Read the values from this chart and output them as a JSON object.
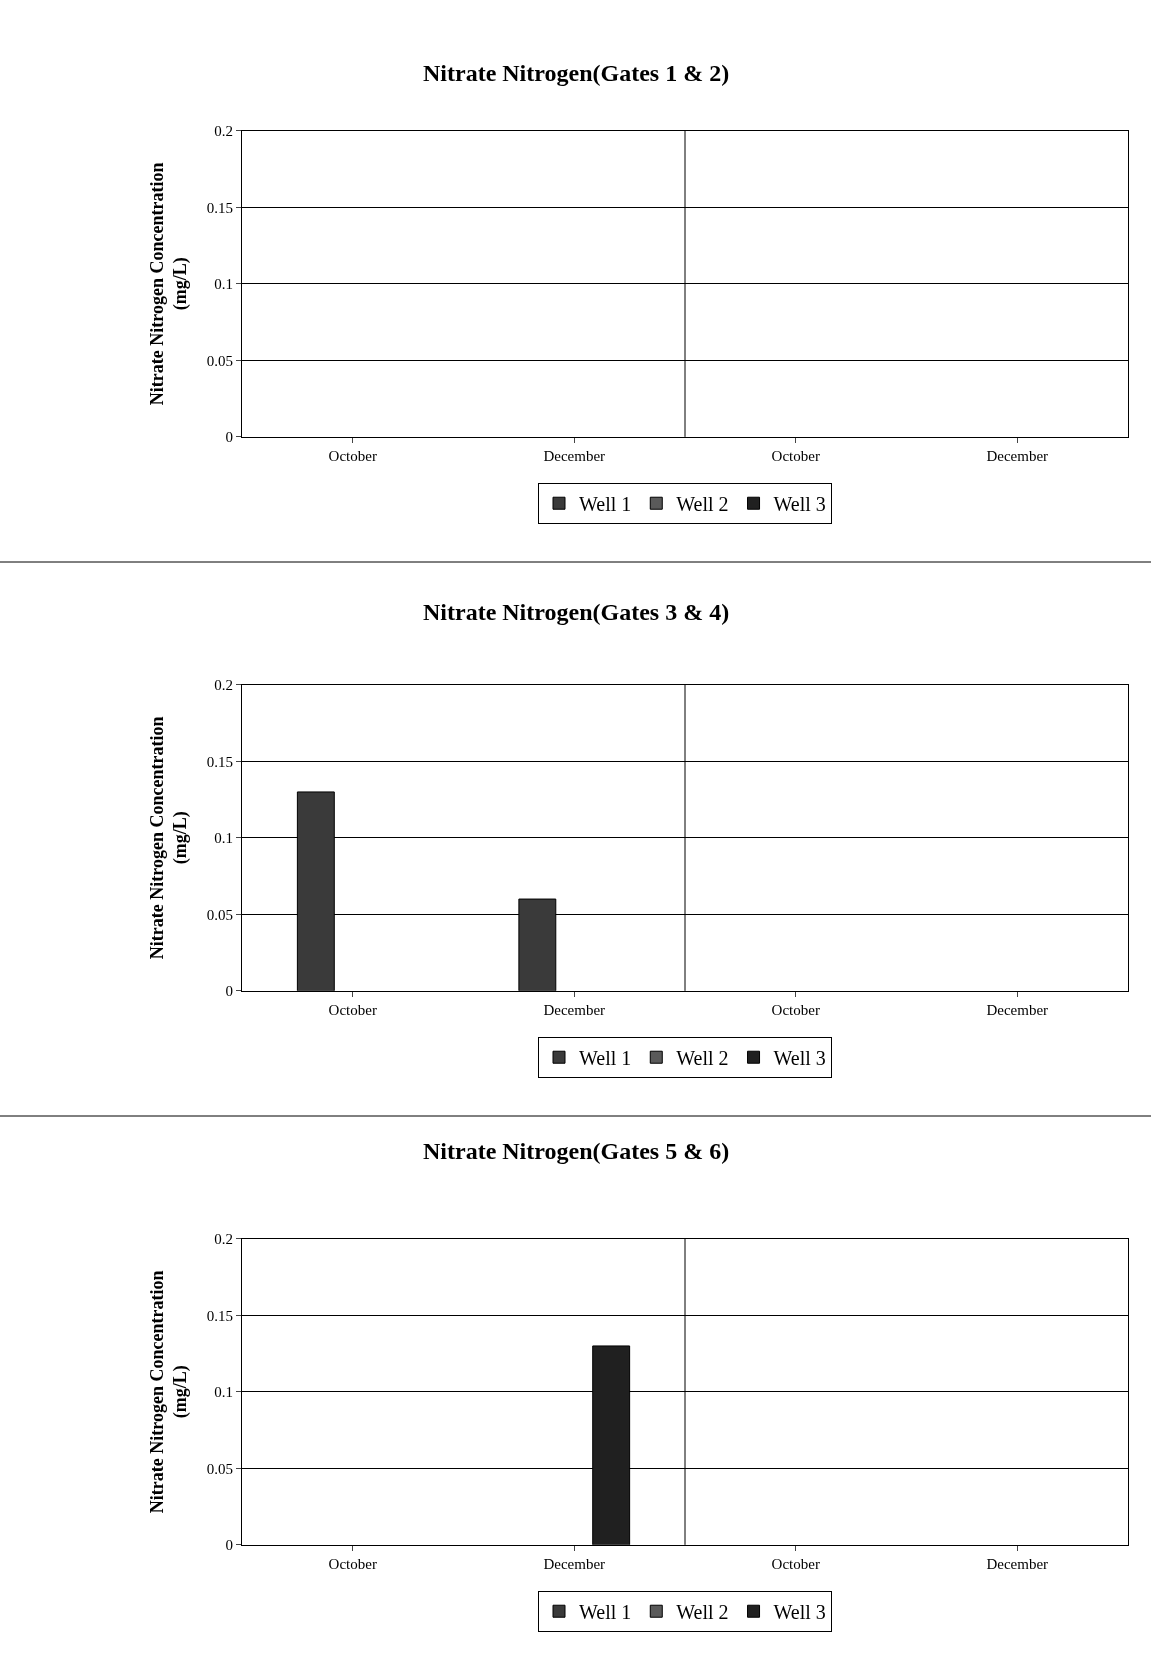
{
  "chart_data": [
    {
      "type": "bar",
      "title": "Nitrate Nitrogen(Gates 1 & 2)",
      "ylabel": "Nitrate Nitrogen Concentration\n(mg/L)",
      "categories": [
        "October",
        "December",
        "October",
        "December"
      ],
      "series": [
        {
          "name": "Well 1",
          "color": "#3a3a3a",
          "values": [
            null,
            null,
            null,
            null
          ]
        },
        {
          "name": "Well 2",
          "color": "#5a5a5a",
          "values": [
            null,
            null,
            null,
            null
          ]
        },
        {
          "name": "Well 3",
          "color": "#202020",
          "values": [
            null,
            null,
            null,
            null
          ]
        }
      ],
      "ylim": [
        0,
        0.2
      ],
      "yticks": [
        0,
        0.05,
        0.1,
        0.15,
        0.2
      ],
      "grid": "y",
      "legend": "bottom"
    },
    {
      "type": "bar",
      "title": "Nitrate Nitrogen(Gates 3 & 4)",
      "ylabel": "Nitrate Nitrogen Concentration\n(mg/L)",
      "categories": [
        "October",
        "December",
        "October",
        "December"
      ],
      "series": [
        {
          "name": "Well 1",
          "color": "#3a3a3a",
          "values": [
            0.13,
            0.06,
            null,
            null
          ]
        },
        {
          "name": "Well 2",
          "color": "#5a5a5a",
          "values": [
            null,
            null,
            null,
            null
          ]
        },
        {
          "name": "Well 3",
          "color": "#202020",
          "values": [
            null,
            null,
            null,
            null
          ]
        }
      ],
      "ylim": [
        0,
        0.2
      ],
      "yticks": [
        0,
        0.05,
        0.1,
        0.15,
        0.2
      ],
      "grid": "y",
      "legend": "bottom"
    },
    {
      "type": "bar",
      "title": "Nitrate Nitrogen(Gates 5 & 6)",
      "ylabel": "Nitrate Nitrogen Concentration\n(mg/L)",
      "categories": [
        "October",
        "December",
        "October",
        "December"
      ],
      "series": [
        {
          "name": "Well 1",
          "color": "#3a3a3a",
          "values": [
            null,
            null,
            null,
            null
          ]
        },
        {
          "name": "Well 2",
          "color": "#5a5a5a",
          "values": [
            null,
            null,
            null,
            null
          ]
        },
        {
          "name": "Well 3",
          "color": "#202020",
          "values": [
            null,
            0.13,
            null,
            null
          ]
        }
      ],
      "ylim": [
        0,
        0.2
      ],
      "yticks": [
        0,
        0.05,
        0.1,
        0.15,
        0.2
      ],
      "grid": "y",
      "legend": "bottom"
    }
  ]
}
